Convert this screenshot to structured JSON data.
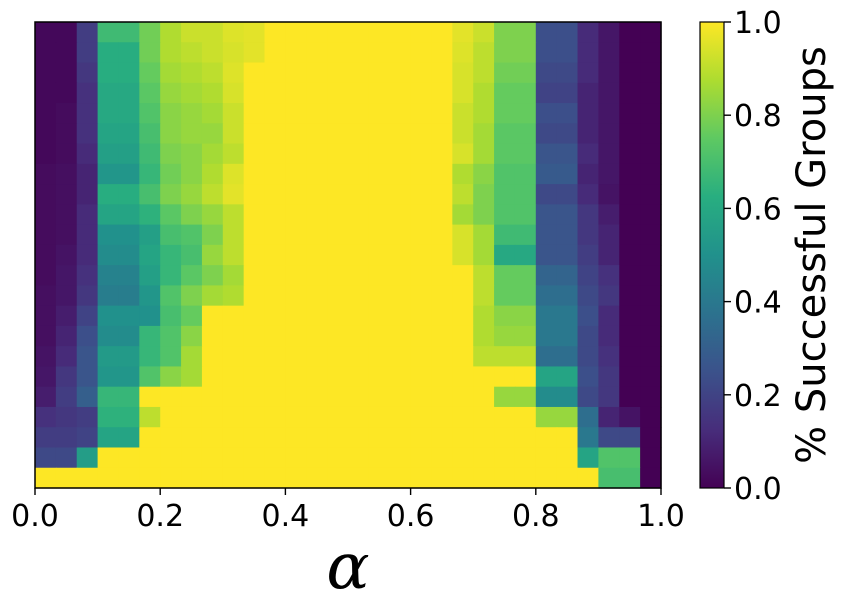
{
  "chart_data": {
    "type": "heatmap",
    "title": "",
    "xlabel": "α",
    "ylabel": "",
    "xlim": [
      0.0,
      1.0
    ],
    "x_ticks": [
      "0.0",
      "0.2",
      "0.4",
      "0.6",
      "0.8",
      "1.0"
    ],
    "y_ticks": [],
    "colormap": "viridis",
    "colorbar": {
      "label": "% Successful Groups",
      "range": [
        0.0,
        1.0
      ],
      "ticks": [
        "0.0",
        "0.2",
        "0.4",
        "0.6",
        "0.8",
        "1.0"
      ]
    },
    "cols": 30,
    "rows_top_to_bottom": 23,
    "values": [
      [
        0.02,
        0.02,
        0.18,
        0.68,
        0.68,
        0.78,
        0.88,
        0.92,
        0.92,
        0.95,
        0.96,
        1,
        1,
        1,
        1,
        1,
        1,
        1,
        1,
        1,
        0.96,
        0.92,
        0.8,
        0.8,
        0.24,
        0.24,
        0.12,
        0.06,
        0.0,
        0.0
      ],
      [
        0.02,
        0.02,
        0.18,
        0.62,
        0.62,
        0.78,
        0.88,
        0.9,
        0.92,
        0.94,
        0.96,
        1,
        1,
        1,
        1,
        1,
        1,
        1,
        1,
        1,
        0.95,
        0.9,
        0.8,
        0.8,
        0.24,
        0.24,
        0.12,
        0.06,
        0.0,
        0.0
      ],
      [
        0.02,
        0.02,
        0.16,
        0.62,
        0.62,
        0.76,
        0.86,
        0.88,
        0.9,
        0.95,
        1,
        1,
        1,
        1,
        1,
        1,
        1,
        1,
        1,
        1,
        0.94,
        0.9,
        0.78,
        0.78,
        0.22,
        0.22,
        0.12,
        0.06,
        0.0,
        0.0
      ],
      [
        0.02,
        0.02,
        0.14,
        0.6,
        0.6,
        0.74,
        0.84,
        0.86,
        0.88,
        0.94,
        1,
        1,
        1,
        1,
        1,
        1,
        1,
        1,
        1,
        1,
        0.94,
        0.88,
        0.76,
        0.76,
        0.2,
        0.2,
        0.1,
        0.06,
        0.0,
        0.0
      ],
      [
        0.02,
        0.03,
        0.14,
        0.6,
        0.6,
        0.72,
        0.82,
        0.84,
        0.86,
        0.92,
        1,
        1,
        1,
        1,
        1,
        1,
        1,
        1,
        1,
        1,
        0.92,
        0.88,
        0.76,
        0.76,
        0.24,
        0.24,
        0.1,
        0.06,
        0.0,
        0.0
      ],
      [
        0.02,
        0.03,
        0.14,
        0.58,
        0.58,
        0.7,
        0.82,
        0.84,
        0.84,
        0.92,
        1,
        1,
        1,
        1,
        1,
        1,
        1,
        1,
        1,
        1,
        0.92,
        0.86,
        0.74,
        0.74,
        0.22,
        0.22,
        0.1,
        0.06,
        0.0,
        0.0
      ],
      [
        0.02,
        0.03,
        0.12,
        0.56,
        0.56,
        0.68,
        0.8,
        0.82,
        0.86,
        0.9,
        1,
        1,
        1,
        1,
        1,
        1,
        1,
        1,
        1,
        1,
        0.94,
        0.86,
        0.74,
        0.74,
        0.26,
        0.26,
        0.12,
        0.06,
        0.0,
        0.0
      ],
      [
        0.03,
        0.04,
        0.1,
        0.52,
        0.52,
        0.66,
        0.78,
        0.82,
        0.88,
        0.95,
        1,
        1,
        1,
        1,
        1,
        1,
        1,
        1,
        1,
        1,
        0.88,
        0.82,
        0.72,
        0.72,
        0.28,
        0.28,
        0.1,
        0.06,
        0.0,
        0.0
      ],
      [
        0.03,
        0.04,
        0.1,
        0.62,
        0.62,
        0.7,
        0.8,
        0.84,
        0.9,
        0.96,
        1,
        1,
        1,
        1,
        1,
        1,
        1,
        1,
        1,
        1,
        0.9,
        0.8,
        0.72,
        0.72,
        0.22,
        0.22,
        0.12,
        0.05,
        0.0,
        0.0
      ],
      [
        0.03,
        0.04,
        0.12,
        0.58,
        0.58,
        0.64,
        0.74,
        0.8,
        0.84,
        0.9,
        1,
        1,
        1,
        1,
        1,
        1,
        1,
        1,
        1,
        1,
        0.86,
        0.8,
        0.72,
        0.72,
        0.26,
        0.26,
        0.16,
        0.08,
        0.0,
        0.0
      ],
      [
        0.03,
        0.04,
        0.12,
        0.5,
        0.5,
        0.56,
        0.7,
        0.72,
        0.8,
        0.9,
        1,
        1,
        1,
        1,
        1,
        1,
        1,
        1,
        1,
        1,
        0.94,
        0.86,
        0.68,
        0.68,
        0.26,
        0.26,
        0.16,
        0.1,
        0.0,
        0.0
      ],
      [
        0.03,
        0.05,
        0.12,
        0.48,
        0.48,
        0.58,
        0.66,
        0.7,
        0.84,
        0.9,
        1,
        1,
        1,
        1,
        1,
        1,
        1,
        1,
        1,
        1,
        0.94,
        0.86,
        0.6,
        0.6,
        0.26,
        0.26,
        0.18,
        0.1,
        0.0,
        0.0
      ],
      [
        0.03,
        0.06,
        0.14,
        0.44,
        0.44,
        0.56,
        0.66,
        0.74,
        0.8,
        0.86,
        1,
        1,
        1,
        1,
        1,
        1,
        1,
        1,
        1,
        1,
        1,
        0.9,
        0.76,
        0.76,
        0.32,
        0.32,
        0.2,
        0.14,
        0.0,
        0.0
      ],
      [
        0.04,
        0.06,
        0.16,
        0.42,
        0.42,
        0.52,
        0.72,
        0.8,
        0.86,
        0.88,
        1,
        1,
        1,
        1,
        1,
        1,
        1,
        1,
        1,
        1,
        1,
        0.9,
        0.76,
        0.76,
        0.36,
        0.36,
        0.22,
        0.16,
        0.0,
        0.0
      ],
      [
        0.04,
        0.08,
        0.2,
        0.5,
        0.5,
        0.5,
        0.7,
        0.76,
        1,
        1,
        1,
        1,
        1,
        1,
        1,
        1,
        1,
        1,
        1,
        1,
        1,
        0.88,
        0.82,
        0.82,
        0.4,
        0.4,
        0.24,
        0.12,
        0.0,
        0.0
      ],
      [
        0.04,
        0.1,
        0.24,
        0.48,
        0.48,
        0.66,
        0.72,
        0.82,
        1,
        1,
        1,
        1,
        1,
        1,
        1,
        1,
        1,
        1,
        1,
        1,
        1,
        0.88,
        0.84,
        0.84,
        0.4,
        0.4,
        0.22,
        0.12,
        0.0,
        0.0
      ],
      [
        0.05,
        0.12,
        0.26,
        0.54,
        0.54,
        0.66,
        0.72,
        0.86,
        1,
        1,
        1,
        1,
        1,
        1,
        1,
        1,
        1,
        1,
        1,
        1,
        1,
        0.9,
        0.9,
        0.9,
        0.36,
        0.36,
        0.22,
        0.14,
        0.0,
        0.0
      ],
      [
        0.06,
        0.16,
        0.26,
        0.52,
        0.52,
        0.72,
        0.82,
        0.86,
        1,
        1,
        1,
        1,
        1,
        1,
        1,
        1,
        1,
        1,
        1,
        1,
        1,
        1,
        1,
        1,
        0.58,
        0.58,
        0.24,
        0.16,
        0.0,
        0.0
      ],
      [
        0.08,
        0.18,
        0.3,
        0.66,
        0.66,
        1,
        1,
        1,
        1,
        1,
        1,
        1,
        1,
        1,
        1,
        1,
        1,
        1,
        1,
        1,
        1,
        1,
        0.84,
        0.84,
        0.48,
        0.48,
        0.22,
        0.16,
        0.0,
        0.0
      ],
      [
        0.14,
        0.16,
        0.18,
        0.64,
        0.64,
        0.9,
        1,
        1,
        1,
        1,
        1,
        1,
        1,
        1,
        1,
        1,
        1,
        1,
        1,
        1,
        1,
        1,
        1,
        1,
        0.84,
        0.84,
        0.36,
        0.1,
        0.05,
        0.0
      ],
      [
        0.18,
        0.18,
        0.2,
        0.58,
        0.58,
        1,
        1,
        1,
        1,
        1,
        1,
        1,
        1,
        1,
        1,
        1,
        1,
        1,
        1,
        1,
        1,
        1,
        1,
        1,
        1,
        1,
        0.4,
        0.22,
        0.22,
        0.0
      ],
      [
        0.22,
        0.22,
        0.55,
        1,
        1,
        1,
        1,
        1,
        1,
        1,
        1,
        1,
        1,
        1,
        1,
        1,
        1,
        1,
        1,
        1,
        1,
        1,
        1,
        1,
        1,
        1,
        0.58,
        0.72,
        0.72,
        0.0
      ],
      [
        1,
        1,
        1,
        1,
        1,
        1,
        1,
        1,
        1,
        1,
        1,
        1,
        1,
        1,
        1,
        1,
        1,
        1,
        1,
        1,
        1,
        1,
        1,
        1,
        1,
        1,
        1,
        0.7,
        0.7,
        0.0
      ]
    ]
  }
}
